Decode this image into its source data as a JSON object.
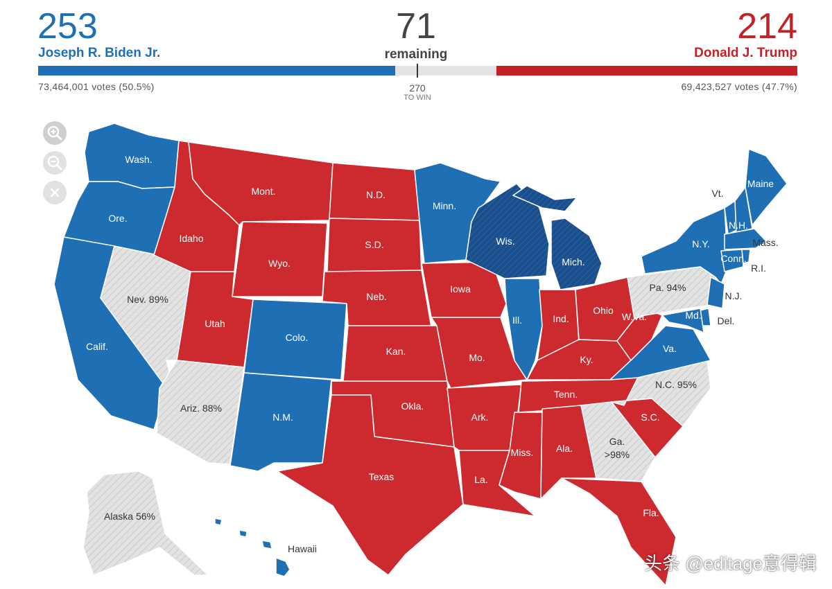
{
  "header": {
    "biden": {
      "electoral_votes": "253",
      "name": "Joseph R. Biden Jr.",
      "popular": "73,464,001 votes (50.5%)",
      "color": "#1f6fb5"
    },
    "trump": {
      "electoral_votes": "214",
      "name": "Donald J. Trump",
      "popular": "69,423,527 votes (47.7%)",
      "color": "#c42127"
    },
    "remaining": {
      "count": "71",
      "label": "remaining"
    },
    "to_win": {
      "number": "270",
      "label": "TO WIN"
    }
  },
  "controls": {
    "zoom_in": "zoom-in-icon",
    "zoom_out": "zoom-out-icon",
    "reset": "close-icon"
  },
  "colors": {
    "dem": "#1f6fb5",
    "dem_flip": "#1a4f8c",
    "rep": "#cc2a2e",
    "undecided": "#e2e2e2"
  },
  "map": {
    "labels": {
      "wash": "Wash.",
      "ore": "Ore.",
      "calif": "Calif.",
      "nev": "Nev. 89%",
      "idaho": "Idaho",
      "mont": "Mont.",
      "wyo": "Wyo.",
      "utah": "Utah",
      "colo": "Colo.",
      "ariz": "Ariz. 88%",
      "nm": "N.M.",
      "nd": "N.D.",
      "sd": "S.D.",
      "neb": "Neb.",
      "kan": "Kan.",
      "okla": "Okla.",
      "texas": "Texas",
      "minn": "Minn.",
      "iowa": "Iowa",
      "mo": "Mo.",
      "ark": "Ark.",
      "la": "La.",
      "wis": "Wis.",
      "ill": "Ill.",
      "mich": "Mich.",
      "ind": "Ind.",
      "ohio": "Ohio",
      "ky": "Ky.",
      "tenn": "Tenn.",
      "miss": "Miss.",
      "ala": "Ala.",
      "ga": "Ga.",
      "ga_pct": ">98%",
      "fla": "Fla.",
      "sc": "S.C.",
      "nc": "N.C. 95%",
      "va": "Va.",
      "wva": "W.Va.",
      "pa": "Pa. 94%",
      "ny": "N.Y.",
      "vt": "Vt.",
      "nh": "N.H.",
      "maine": "Maine",
      "mass": "Mass.",
      "conn": "Conn.",
      "ri": "R.I.",
      "nj": "N.J.",
      "del": "Del.",
      "md": "Md.",
      "alaska": "Alaska 56%",
      "hawaii": "Hawaii"
    }
  },
  "watermark": "头条 @editage意得辑"
}
